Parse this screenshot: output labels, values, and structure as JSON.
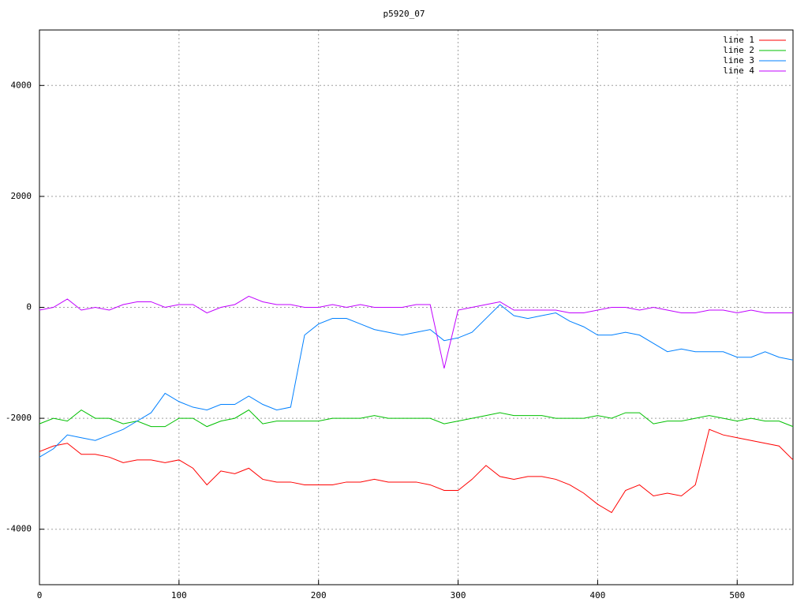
{
  "chart_data": {
    "type": "line",
    "title": "p5920_07",
    "x": [
      0,
      10,
      20,
      30,
      40,
      50,
      60,
      70,
      80,
      90,
      100,
      110,
      120,
      130,
      140,
      150,
      160,
      170,
      180,
      190,
      200,
      210,
      220,
      230,
      240,
      250,
      260,
      270,
      280,
      290,
      300,
      310,
      320,
      330,
      340,
      350,
      360,
      370,
      380,
      390,
      400,
      410,
      420,
      430,
      440,
      450,
      460,
      470,
      480,
      490,
      500,
      510,
      520,
      530,
      540
    ],
    "series": [
      {
        "name": "line 1",
        "color": "#ff0000",
        "values": [
          -2600,
          -2500,
          -2450,
          -2650,
          -2650,
          -2700,
          -2800,
          -2750,
          -2750,
          -2800,
          -2750,
          -2900,
          -3200,
          -2950,
          -3000,
          -2900,
          -3100,
          -3150,
          -3150,
          -3200,
          -3200,
          -3200,
          -3150,
          -3150,
          -3100,
          -3150,
          -3150,
          -3150,
          -3200,
          -3300,
          -3300,
          -3100,
          -2850,
          -3050,
          -3100,
          -3050,
          -3050,
          -3100,
          -3200,
          -3350,
          -3550,
          -3700,
          -3300,
          -3200,
          -3400,
          -3350,
          -3400,
          -3200,
          -2200,
          -2300,
          -2350,
          -2400,
          -2450,
          -2500,
          -2750
        ]
      },
      {
        "name": "line 2",
        "color": "#00c000",
        "values": [
          -2100,
          -2000,
          -2050,
          -1850,
          -2000,
          -2000,
          -2100,
          -2050,
          -2150,
          -2150,
          -2000,
          -2000,
          -2150,
          -2050,
          -2000,
          -1850,
          -2100,
          -2050,
          -2050,
          -2050,
          -2050,
          -2000,
          -2000,
          -2000,
          -1950,
          -2000,
          -2000,
          -2000,
          -2000,
          -2100,
          -2050,
          -2000,
          -1950,
          -1900,
          -1950,
          -1950,
          -1950,
          -2000,
          -2000,
          -2000,
          -1950,
          -2000,
          -1900,
          -1900,
          -2100,
          -2050,
          -2050,
          -2000,
          -1950,
          -2000,
          -2050,
          -2000,
          -2050,
          -2050,
          -2150
        ]
      },
      {
        "name": "line 3",
        "color": "#0080ff",
        "values": [
          -2700,
          -2550,
          -2300,
          -2350,
          -2400,
          -2300,
          -2200,
          -2050,
          -1900,
          -1550,
          -1700,
          -1800,
          -1850,
          -1750,
          -1750,
          -1600,
          -1750,
          -1850,
          -1800,
          -500,
          -300,
          -200,
          -200,
          -300,
          -400,
          -450,
          -500,
          -450,
          -400,
          -600,
          -550,
          -450,
          -200,
          50,
          -150,
          -200,
          -150,
          -100,
          -250,
          -350,
          -500,
          -500,
          -450,
          -500,
          -650,
          -800,
          -750,
          -800,
          -800,
          -800,
          -900,
          -900,
          -800,
          -900,
          -950
        ]
      },
      {
        "name": "line 4",
        "color": "#c000ff",
        "values": [
          -50,
          0,
          150,
          -50,
          0,
          -50,
          50,
          100,
          100,
          0,
          50,
          50,
          -100,
          0,
          50,
          200,
          100,
          50,
          50,
          0,
          0,
          50,
          0,
          50,
          0,
          0,
          0,
          50,
          50,
          -1100,
          -50,
          0,
          50,
          100,
          -50,
          -50,
          -50,
          -50,
          -100,
          -100,
          -50,
          0,
          0,
          -50,
          0,
          -50,
          -100,
          -100,
          -50,
          -50,
          -100,
          -50,
          -100,
          -100,
          -100
        ]
      }
    ],
    "xlim": [
      0,
      540
    ],
    "ylim": [
      -5000,
      5000
    ],
    "xticks": [
      0,
      100,
      200,
      300,
      400,
      500
    ],
    "yticks": [
      -4000,
      -2000,
      0,
      2000,
      4000
    ],
    "grid": true,
    "legend": "top-right"
  }
}
